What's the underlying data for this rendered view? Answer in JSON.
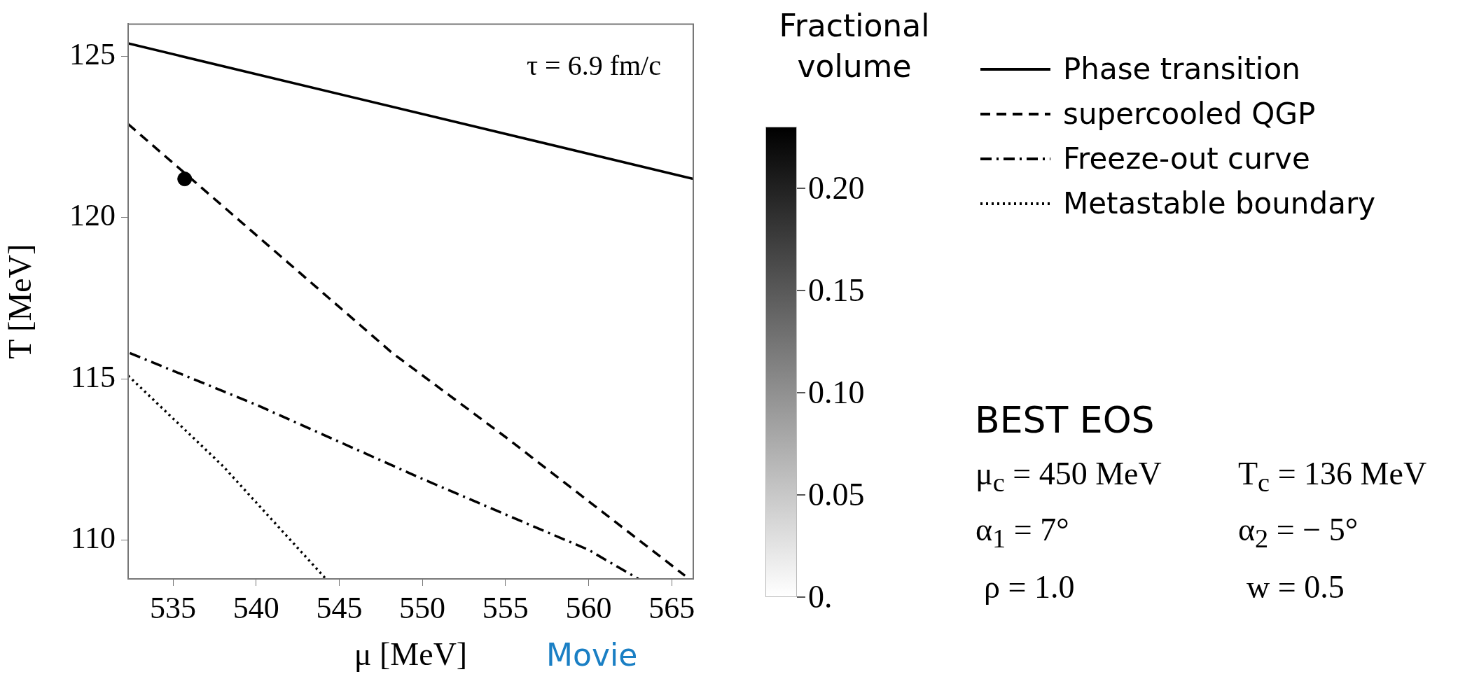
{
  "chart_data": {
    "type": "line",
    "xlabel": "μ [MeV]",
    "ylabel": "T [MeV]",
    "clabel": "Fractional volume",
    "xlim": [
      532.3,
      566.3
    ],
    "xticks": [
      535,
      540,
      545,
      550,
      555,
      560,
      565
    ],
    "ylim": [
      108.8,
      126.0
    ],
    "yticks": [
      110,
      115,
      120,
      125
    ],
    "clim": [
      0,
      0.23
    ],
    "cticks": [
      {
        "value": 0,
        "label": "0."
      },
      0.05,
      {
        "value": 0.1,
        "label": "0.10"
      },
      0.15,
      {
        "value": 0.2,
        "label": "0.20"
      }
    ],
    "grid": false,
    "legend": "right",
    "series": [
      {
        "name": "Phase transition",
        "line_style": "solid",
        "color": "#000000",
        "x": [
          532.3,
          566.3
        ],
        "values": [
          125.4,
          121.2
        ]
      },
      {
        "name": "supercooled QGP",
        "line_style": "dashed",
        "color": "#000000",
        "x": [
          532.3,
          548.2,
          555,
          565.8
        ],
        "values": [
          122.9,
          115.8,
          113.2,
          108.9
        ]
      },
      {
        "name": "Freeze-out curve",
        "line_style": "dashdot",
        "color": "#000000",
        "x": [
          532.4,
          540,
          550,
          560,
          563.0
        ],
        "values": [
          115.8,
          114.2,
          111.9,
          109.7,
          108.8
        ]
      },
      {
        "name": "Metastable boundary",
        "line_style": "dotted",
        "color": "#000000",
        "x": [
          532.3,
          538,
          544.2
        ],
        "values": [
          115.1,
          112.3,
          108.8
        ]
      },
      {
        "type": "scatter",
        "marker": "circle",
        "color": "#000000",
        "x": [
          535.7
        ],
        "values": [
          121.2
        ]
      }
    ],
    "annotations": [
      "τ = 6.9 fm/c",
      "Movie",
      "BEST EOS",
      "μ$_{c}$ = 450 MeV",
      "T$_{c}$ = 136 MeV",
      "α$_{1}$ = 7°",
      "α$_{2}$ = − 5°",
      "ρ = 1.0",
      "w = 0.5"
    ]
  }
}
